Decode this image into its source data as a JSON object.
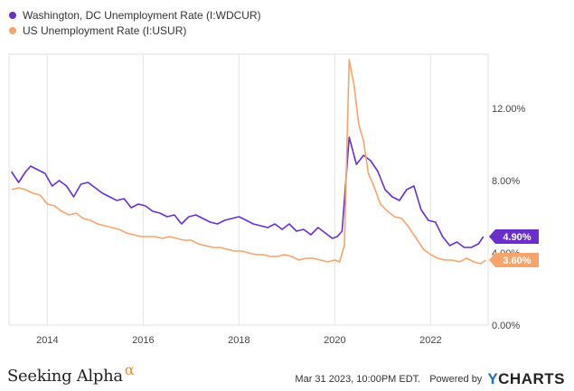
{
  "legend": [
    {
      "label": "Washington, DC Unemployment Rate (I:WDCUR)",
      "color": "#6a2fc8"
    },
    {
      "label": "US Unemployment Rate (I:USUR)",
      "color": "#f5a46c"
    }
  ],
  "footer": {
    "brand": "Seeking Alpha",
    "brand_mark": "α",
    "timestamp": "Mar 31 2023, 10:00PM EDT.",
    "powered_by": "Powered by",
    "provider_y": "Y",
    "provider_rest": "CHARTS"
  },
  "chart_data": {
    "type": "line",
    "xlim": [
      2013.2,
      2023.2
    ],
    "ylim": [
      0,
      15.0
    ],
    "x_ticks": [
      {
        "value": 2014,
        "label": "2014"
      },
      {
        "value": 2016,
        "label": "2016"
      },
      {
        "value": 2018,
        "label": "2018"
      },
      {
        "value": 2020,
        "label": "2020"
      },
      {
        "value": 2022,
        "label": "2022"
      }
    ],
    "y_ticks": [
      {
        "value": 0,
        "label": "0.00%"
      },
      {
        "value": 4,
        "label": "4.00%"
      },
      {
        "value": 8,
        "label": "8.00%"
      },
      {
        "value": 12,
        "label": "12.00%"
      }
    ],
    "grid": "vertical",
    "series": [
      {
        "name": "Washington, DC Unemployment Rate (I:WDCUR)",
        "color": "#6a2fc8",
        "last_label": "4.90%",
        "points": [
          [
            2013.25,
            8.5
          ],
          [
            2013.4,
            7.9
          ],
          [
            2013.55,
            8.5
          ],
          [
            2013.65,
            8.8
          ],
          [
            2013.8,
            8.6
          ],
          [
            2013.95,
            8.4
          ],
          [
            2014.1,
            7.7
          ],
          [
            2014.25,
            8.0
          ],
          [
            2014.4,
            7.7
          ],
          [
            2014.55,
            7.1
          ],
          [
            2014.7,
            7.8
          ],
          [
            2014.85,
            7.9
          ],
          [
            2015.0,
            7.6
          ],
          [
            2015.15,
            7.3
          ],
          [
            2015.3,
            7.1
          ],
          [
            2015.45,
            6.9
          ],
          [
            2015.6,
            7.0
          ],
          [
            2015.75,
            6.5
          ],
          [
            2015.9,
            6.7
          ],
          [
            2016.05,
            6.6
          ],
          [
            2016.2,
            6.3
          ],
          [
            2016.35,
            6.2
          ],
          [
            2016.5,
            6.0
          ],
          [
            2016.65,
            6.1
          ],
          [
            2016.8,
            5.6
          ],
          [
            2016.95,
            6.0
          ],
          [
            2017.1,
            6.1
          ],
          [
            2017.25,
            5.9
          ],
          [
            2017.4,
            5.7
          ],
          [
            2017.55,
            5.6
          ],
          [
            2017.7,
            5.8
          ],
          [
            2017.85,
            5.9
          ],
          [
            2018.0,
            6.0
          ],
          [
            2018.15,
            5.8
          ],
          [
            2018.3,
            5.6
          ],
          [
            2018.45,
            5.5
          ],
          [
            2018.6,
            5.4
          ],
          [
            2018.75,
            5.6
          ],
          [
            2018.9,
            5.3
          ],
          [
            2019.05,
            5.6
          ],
          [
            2019.2,
            5.2
          ],
          [
            2019.35,
            5.3
          ],
          [
            2019.5,
            5.0
          ],
          [
            2019.65,
            5.4
          ],
          [
            2019.8,
            5.1
          ],
          [
            2019.95,
            4.8
          ],
          [
            2020.05,
            4.9
          ],
          [
            2020.15,
            5.2
          ],
          [
            2020.3,
            10.4
          ],
          [
            2020.45,
            8.9
          ],
          [
            2020.6,
            9.4
          ],
          [
            2020.75,
            9.1
          ],
          [
            2020.9,
            8.5
          ],
          [
            2021.05,
            7.5
          ],
          [
            2021.2,
            7.1
          ],
          [
            2021.35,
            6.9
          ],
          [
            2021.5,
            7.5
          ],
          [
            2021.65,
            7.7
          ],
          [
            2021.8,
            6.4
          ],
          [
            2021.95,
            5.8
          ],
          [
            2022.1,
            5.7
          ],
          [
            2022.25,
            4.9
          ],
          [
            2022.4,
            4.4
          ],
          [
            2022.55,
            4.6
          ],
          [
            2022.7,
            4.3
          ],
          [
            2022.85,
            4.3
          ],
          [
            2023.0,
            4.5
          ],
          [
            2023.1,
            4.9
          ]
        ]
      },
      {
        "name": "US Unemployment Rate (I:USUR)",
        "color": "#f5a46c",
        "last_label": "3.60%",
        "points": [
          [
            2013.25,
            7.5
          ],
          [
            2013.4,
            7.6
          ],
          [
            2013.55,
            7.5
          ],
          [
            2013.7,
            7.3
          ],
          [
            2013.85,
            7.2
          ],
          [
            2014.0,
            6.7
          ],
          [
            2014.15,
            6.6
          ],
          [
            2014.3,
            6.3
          ],
          [
            2014.45,
            6.1
          ],
          [
            2014.6,
            6.2
          ],
          [
            2014.75,
            5.9
          ],
          [
            2014.9,
            5.8
          ],
          [
            2015.05,
            5.6
          ],
          [
            2015.2,
            5.5
          ],
          [
            2015.35,
            5.4
          ],
          [
            2015.5,
            5.3
          ],
          [
            2015.65,
            5.1
          ],
          [
            2015.8,
            5.0
          ],
          [
            2015.95,
            4.9
          ],
          [
            2016.1,
            4.9
          ],
          [
            2016.25,
            4.9
          ],
          [
            2016.4,
            4.8
          ],
          [
            2016.55,
            4.9
          ],
          [
            2016.7,
            4.8
          ],
          [
            2016.85,
            4.7
          ],
          [
            2017.0,
            4.7
          ],
          [
            2017.15,
            4.5
          ],
          [
            2017.3,
            4.4
          ],
          [
            2017.45,
            4.3
          ],
          [
            2017.6,
            4.3
          ],
          [
            2017.75,
            4.2
          ],
          [
            2017.9,
            4.1
          ],
          [
            2018.05,
            4.1
          ],
          [
            2018.2,
            4.0
          ],
          [
            2018.35,
            3.9
          ],
          [
            2018.5,
            3.9
          ],
          [
            2018.65,
            3.8
          ],
          [
            2018.8,
            3.8
          ],
          [
            2018.95,
            3.9
          ],
          [
            2019.1,
            3.8
          ],
          [
            2019.25,
            3.6
          ],
          [
            2019.4,
            3.7
          ],
          [
            2019.55,
            3.7
          ],
          [
            2019.7,
            3.6
          ],
          [
            2019.85,
            3.5
          ],
          [
            2020.0,
            3.6
          ],
          [
            2020.1,
            3.5
          ],
          [
            2020.2,
            4.4
          ],
          [
            2020.3,
            14.7
          ],
          [
            2020.4,
            13.3
          ],
          [
            2020.5,
            11.1
          ],
          [
            2020.6,
            10.2
          ],
          [
            2020.7,
            8.4
          ],
          [
            2020.8,
            7.8
          ],
          [
            2020.95,
            6.7
          ],
          [
            2021.1,
            6.3
          ],
          [
            2021.25,
            6.0
          ],
          [
            2021.4,
            5.9
          ],
          [
            2021.55,
            5.4
          ],
          [
            2021.7,
            4.8
          ],
          [
            2021.85,
            4.2
          ],
          [
            2022.0,
            3.9
          ],
          [
            2022.15,
            3.7
          ],
          [
            2022.3,
            3.6
          ],
          [
            2022.45,
            3.6
          ],
          [
            2022.6,
            3.5
          ],
          [
            2022.75,
            3.7
          ],
          [
            2022.9,
            3.5
          ],
          [
            2023.05,
            3.4
          ],
          [
            2023.15,
            3.6
          ]
        ]
      }
    ]
  }
}
